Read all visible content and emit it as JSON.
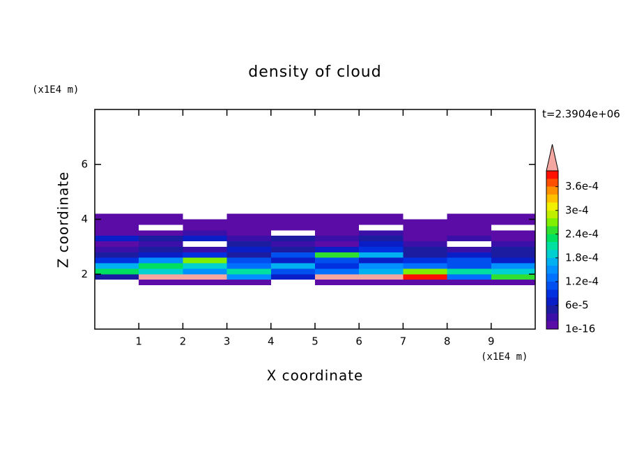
{
  "chart_data": {
    "type": "contour",
    "title": "density of cloud",
    "xlabel": "X coordinate",
    "ylabel": "Z coordinate",
    "x_unit": "(x1E4 m)",
    "y_unit": "(x1E4 m)",
    "annotation": "t=2.3904e+06",
    "xlim": [
      0,
      10
    ],
    "ylim": [
      0,
      8
    ],
    "xticks": [
      1,
      2,
      3,
      4,
      5,
      6,
      7,
      8,
      9
    ],
    "yticks": [
      2,
      4,
      6
    ],
    "xbins": [
      0,
      1,
      2,
      3,
      4,
      5,
      6,
      7,
      8,
      9,
      10
    ],
    "zbins": [
      1.6,
      1.8,
      2.0,
      2.2,
      2.4,
      2.6,
      2.8,
      3.0,
      3.2,
      3.4,
      3.6,
      3.8,
      4.0,
      4.2
    ],
    "z": [
      [
        null,
        1e-05,
        1e-05,
        1e-05,
        null,
        1e-05,
        1e-05,
        1e-05,
        1e-05,
        1e-05
      ],
      [
        5e-05,
        0.00042,
        0.00042,
        0.00015,
        6e-05,
        0.00042,
        0.00042,
        0.00038,
        0.00012,
        0.00024
      ],
      [
        0.00022,
        0.00018,
        0.00014,
        0.0002,
        0.0001,
        0.00012,
        0.00016,
        0.00026,
        0.0002,
        0.00018
      ],
      [
        0.00016,
        0.00022,
        0.00018,
        0.00012,
        0.00016,
        8e-05,
        0.00014,
        0.00012,
        0.0001,
        0.00014
      ],
      [
        8e-05,
        0.00014,
        0.00026,
        0.0001,
        6e-05,
        0.0001,
        6e-05,
        8e-05,
        0.0001,
        6e-05
      ],
      [
        4e-05,
        6e-05,
        8e-05,
        4e-05,
        0.0001,
        0.00024,
        0.00016,
        4e-05,
        6e-05,
        4e-05
      ],
      [
        2e-05,
        4e-05,
        2e-05,
        6e-05,
        4e-05,
        6e-05,
        8e-05,
        4e-05,
        2e-05,
        4e-05
      ],
      [
        1e-05,
        2e-05,
        null,
        4e-05,
        2e-05,
        1e-05,
        6e-05,
        2e-05,
        null,
        2e-05
      ],
      [
        6e-05,
        4e-05,
        6e-05,
        2e-05,
        4e-05,
        2e-05,
        4e-05,
        1e-05,
        2e-05,
        1e-05
      ],
      [
        1e-05,
        1e-05,
        2e-05,
        1e-05,
        null,
        1e-05,
        2e-05,
        1e-05,
        1e-05,
        1e-05
      ],
      [
        1e-05,
        null,
        1e-05,
        1e-05,
        1e-05,
        1e-05,
        null,
        1e-05,
        1e-05,
        null
      ],
      [
        1e-05,
        1e-05,
        1e-05,
        1e-05,
        1e-05,
        1e-05,
        1e-05,
        1e-05,
        1e-05,
        1e-05
      ],
      [
        1e-05,
        1e-05,
        null,
        1e-05,
        1e-05,
        1e-05,
        1e-05,
        null,
        1e-05,
        1e-05
      ]
    ],
    "levels": [
      1e-16,
      2e-05,
      4e-05,
      6e-05,
      8e-05,
      0.0001,
      0.00012,
      0.00014,
      0.00016,
      0.00018,
      0.0002,
      0.00022,
      0.00024,
      0.00026,
      0.00028,
      0.0003,
      0.00032,
      0.00034,
      0.00036,
      0.00038,
      0.0004
    ],
    "colors": [
      "#5b0ca6",
      "#3a10a8",
      "#1c1ca0",
      "#0a1ec8",
      "#0030e0",
      "#0050f0",
      "#0070ff",
      "#0090ff",
      "#00b0f0",
      "#00d0d0",
      "#00e0a0",
      "#00e060",
      "#30e030",
      "#80f000",
      "#c0f000",
      "#f0f000",
      "#ffc000",
      "#ff9000",
      "#ff5000",
      "#ff1000"
    ],
    "extend_color": "#f4a6a0",
    "colorbar_ticks": [
      {
        "value": 1e-16,
        "label": "1e-16"
      },
      {
        "value": 6e-05,
        "label": "6e-5"
      },
      {
        "value": 0.00012,
        "label": "1.2e-4"
      },
      {
        "value": 0.00018,
        "label": "1.8e-4"
      },
      {
        "value": 0.00024,
        "label": "2.4e-4"
      },
      {
        "value": 0.0003,
        "label": "3e-4"
      },
      {
        "value": 0.00036,
        "label": "3.6e-4"
      }
    ]
  }
}
